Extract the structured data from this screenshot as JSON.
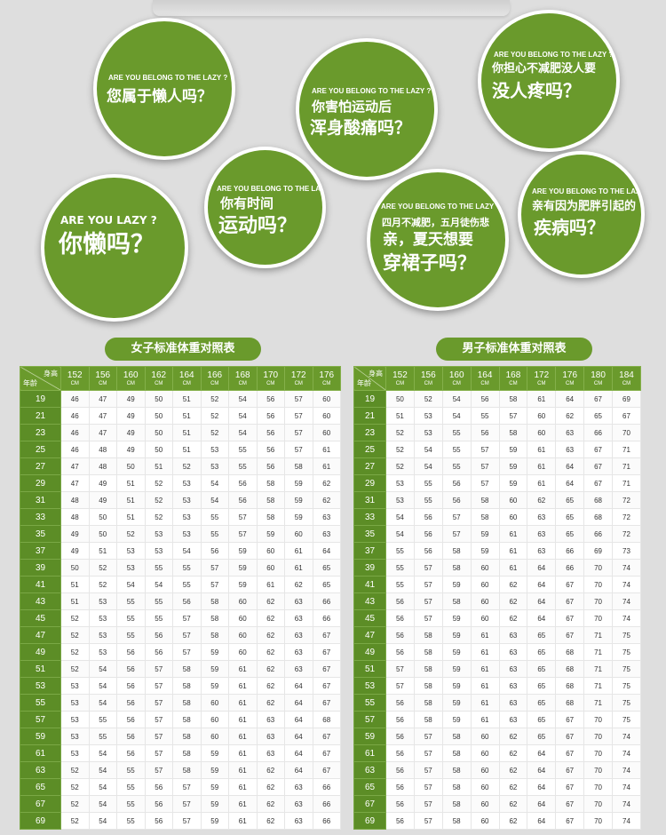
{
  "bubbles": [
    {
      "caption": "ARE YOU BELONG TO THE LAZY ?",
      "lines": [
        "您属于懒人吗？"
      ]
    },
    {
      "caption": "ARE YOU BELONG TO THE LAZY ?",
      "lines": [
        "你害怕运动后",
        "浑身酸痛吗？"
      ]
    },
    {
      "caption": "ARE YOU BELONG TO THE LAZY ?",
      "lines": [
        "你担心不减肥没人要",
        "没人疼吗？"
      ]
    },
    {
      "caption": "ARE YOU  LAZY ?",
      "lines": [
        "你懒吗？"
      ]
    },
    {
      "caption": "ARE YOU BELONG TO THE LAZY ?",
      "lines": [
        "你有时间",
        "运动吗？"
      ]
    },
    {
      "caption": "ARE YOU BELONG TO THE LAZY ?",
      "lines": [
        "四月不减肥，五月徒伤悲",
        "亲，夏天想要",
        "穿裙子吗？"
      ]
    },
    {
      "caption": "ARE YOU BELONG TO THE LAZY ?",
      "lines": [
        "亲有因为肥胖引起的",
        "疾病吗？"
      ]
    }
  ],
  "female_table": {
    "title": "女子标准体重对照表",
    "corner_top": "身高",
    "corner_bottom": "年龄",
    "unit": "CM",
    "heights": [
      "152",
      "156",
      "160",
      "162",
      "164",
      "166",
      "168",
      "170",
      "172",
      "176"
    ],
    "rows": [
      {
        "age": "19",
        "values": [
          "46",
          "47",
          "49",
          "50",
          "51",
          "52",
          "54",
          "56",
          "57",
          "60"
        ]
      },
      {
        "age": "21",
        "values": [
          "46",
          "47",
          "49",
          "50",
          "51",
          "52",
          "54",
          "56",
          "57",
          "60"
        ]
      },
      {
        "age": "23",
        "values": [
          "46",
          "47",
          "49",
          "50",
          "51",
          "52",
          "54",
          "56",
          "57",
          "60"
        ]
      },
      {
        "age": "25",
        "values": [
          "46",
          "48",
          "49",
          "50",
          "51",
          "53",
          "55",
          "56",
          "57",
          "61"
        ]
      },
      {
        "age": "27",
        "values": [
          "47",
          "48",
          "50",
          "51",
          "52",
          "53",
          "55",
          "56",
          "58",
          "61"
        ]
      },
      {
        "age": "29",
        "values": [
          "47",
          "49",
          "51",
          "52",
          "53",
          "54",
          "56",
          "58",
          "59",
          "62"
        ]
      },
      {
        "age": "31",
        "values": [
          "48",
          "49",
          "51",
          "52",
          "53",
          "54",
          "56",
          "58",
          "59",
          "62"
        ]
      },
      {
        "age": "33",
        "values": [
          "48",
          "50",
          "51",
          "52",
          "53",
          "55",
          "57",
          "58",
          "59",
          "63"
        ]
      },
      {
        "age": "35",
        "values": [
          "49",
          "50",
          "52",
          "53",
          "53",
          "55",
          "57",
          "59",
          "60",
          "63"
        ]
      },
      {
        "age": "37",
        "values": [
          "49",
          "51",
          "53",
          "53",
          "54",
          "56",
          "59",
          "60",
          "61",
          "64"
        ]
      },
      {
        "age": "39",
        "values": [
          "50",
          "52",
          "53",
          "55",
          "55",
          "57",
          "59",
          "60",
          "61",
          "65"
        ]
      },
      {
        "age": "41",
        "values": [
          "51",
          "52",
          "54",
          "54",
          "55",
          "57",
          "59",
          "61",
          "62",
          "65"
        ]
      },
      {
        "age": "43",
        "values": [
          "51",
          "53",
          "55",
          "55",
          "56",
          "58",
          "60",
          "62",
          "63",
          "66"
        ]
      },
      {
        "age": "45",
        "values": [
          "52",
          "53",
          "55",
          "55",
          "57",
          "58",
          "60",
          "62",
          "63",
          "66"
        ]
      },
      {
        "age": "47",
        "values": [
          "52",
          "53",
          "55",
          "56",
          "57",
          "58",
          "60",
          "62",
          "63",
          "67"
        ]
      },
      {
        "age": "49",
        "values": [
          "52",
          "53",
          "56",
          "56",
          "57",
          "59",
          "60",
          "62",
          "63",
          "67"
        ]
      },
      {
        "age": "51",
        "values": [
          "52",
          "54",
          "56",
          "57",
          "58",
          "59",
          "61",
          "62",
          "63",
          "67"
        ]
      },
      {
        "age": "53",
        "values": [
          "53",
          "54",
          "56",
          "57",
          "58",
          "59",
          "61",
          "62",
          "64",
          "67"
        ]
      },
      {
        "age": "55",
        "values": [
          "53",
          "54",
          "56",
          "57",
          "58",
          "60",
          "61",
          "62",
          "64",
          "67"
        ]
      },
      {
        "age": "57",
        "values": [
          "53",
          "55",
          "56",
          "57",
          "58",
          "60",
          "61",
          "63",
          "64",
          "68"
        ]
      },
      {
        "age": "59",
        "values": [
          "53",
          "55",
          "56",
          "57",
          "58",
          "60",
          "61",
          "63",
          "64",
          "67"
        ]
      },
      {
        "age": "61",
        "values": [
          "53",
          "54",
          "56",
          "57",
          "58",
          "59",
          "61",
          "63",
          "64",
          "67"
        ]
      },
      {
        "age": "63",
        "values": [
          "52",
          "54",
          "55",
          "57",
          "58",
          "59",
          "61",
          "62",
          "64",
          "67"
        ]
      },
      {
        "age": "65",
        "values": [
          "52",
          "54",
          "55",
          "56",
          "57",
          "59",
          "61",
          "62",
          "63",
          "66"
        ]
      },
      {
        "age": "67",
        "values": [
          "52",
          "54",
          "55",
          "56",
          "57",
          "59",
          "61",
          "62",
          "63",
          "66"
        ]
      },
      {
        "age": "69",
        "values": [
          "52",
          "54",
          "55",
          "56",
          "57",
          "59",
          "61",
          "62",
          "63",
          "66"
        ]
      }
    ]
  },
  "male_table": {
    "title": "男子标准体重对照表",
    "corner_top": "身高",
    "corner_bottom": "年龄",
    "unit": "CM",
    "heights": [
      "152",
      "156",
      "160",
      "164",
      "168",
      "172",
      "176",
      "180",
      "184"
    ],
    "rows": [
      {
        "age": "19",
        "values": [
          "50",
          "52",
          "54",
          "56",
          "58",
          "61",
          "64",
          "67",
          "69"
        ]
      },
      {
        "age": "21",
        "values": [
          "51",
          "53",
          "54",
          "55",
          "57",
          "60",
          "62",
          "65",
          "67"
        ]
      },
      {
        "age": "23",
        "values": [
          "52",
          "53",
          "55",
          "56",
          "58",
          "60",
          "63",
          "66",
          "70"
        ]
      },
      {
        "age": "25",
        "values": [
          "52",
          "54",
          "55",
          "57",
          "59",
          "61",
          "63",
          "67",
          "71"
        ]
      },
      {
        "age": "27",
        "values": [
          "52",
          "54",
          "55",
          "57",
          "59",
          "61",
          "64",
          "67",
          "71"
        ]
      },
      {
        "age": "29",
        "values": [
          "53",
          "55",
          "56",
          "57",
          "59",
          "61",
          "64",
          "67",
          "71"
        ]
      },
      {
        "age": "31",
        "values": [
          "53",
          "55",
          "56",
          "58",
          "60",
          "62",
          "65",
          "68",
          "72"
        ]
      },
      {
        "age": "33",
        "values": [
          "54",
          "56",
          "57",
          "58",
          "60",
          "63",
          "65",
          "68",
          "72"
        ]
      },
      {
        "age": "35",
        "values": [
          "54",
          "56",
          "57",
          "59",
          "61",
          "63",
          "65",
          "66",
          "72"
        ]
      },
      {
        "age": "37",
        "values": [
          "55",
          "56",
          "58",
          "59",
          "61",
          "63",
          "66",
          "69",
          "73"
        ]
      },
      {
        "age": "39",
        "values": [
          "55",
          "57",
          "58",
          "60",
          "61",
          "64",
          "66",
          "70",
          "74"
        ]
      },
      {
        "age": "41",
        "values": [
          "55",
          "57",
          "59",
          "60",
          "62",
          "64",
          "67",
          "70",
          "74"
        ]
      },
      {
        "age": "43",
        "values": [
          "56",
          "57",
          "58",
          "60",
          "62",
          "64",
          "67",
          "70",
          "74"
        ]
      },
      {
        "age": "45",
        "values": [
          "56",
          "57",
          "59",
          "60",
          "62",
          "64",
          "67",
          "70",
          "74"
        ]
      },
      {
        "age": "47",
        "values": [
          "56",
          "58",
          "59",
          "61",
          "63",
          "65",
          "67",
          "71",
          "75"
        ]
      },
      {
        "age": "49",
        "values": [
          "56",
          "58",
          "59",
          "61",
          "63",
          "65",
          "68",
          "71",
          "75"
        ]
      },
      {
        "age": "51",
        "values": [
          "57",
          "58",
          "59",
          "61",
          "63",
          "65",
          "68",
          "71",
          "75"
        ]
      },
      {
        "age": "53",
        "values": [
          "57",
          "58",
          "59",
          "61",
          "63",
          "65",
          "68",
          "71",
          "75"
        ]
      },
      {
        "age": "55",
        "values": [
          "56",
          "58",
          "59",
          "61",
          "63",
          "65",
          "68",
          "71",
          "75"
        ]
      },
      {
        "age": "57",
        "values": [
          "56",
          "58",
          "59",
          "61",
          "63",
          "65",
          "67",
          "70",
          "75"
        ]
      },
      {
        "age": "59",
        "values": [
          "56",
          "57",
          "58",
          "60",
          "62",
          "65",
          "67",
          "70",
          "74"
        ]
      },
      {
        "age": "61",
        "values": [
          "56",
          "57",
          "58",
          "60",
          "62",
          "64",
          "67",
          "70",
          "74"
        ]
      },
      {
        "age": "63",
        "values": [
          "56",
          "57",
          "58",
          "60",
          "62",
          "64",
          "67",
          "70",
          "74"
        ]
      },
      {
        "age": "65",
        "values": [
          "56",
          "57",
          "58",
          "60",
          "62",
          "64",
          "67",
          "70",
          "74"
        ]
      },
      {
        "age": "67",
        "values": [
          "56",
          "57",
          "58",
          "60",
          "62",
          "64",
          "67",
          "70",
          "74"
        ]
      },
      {
        "age": "69",
        "values": [
          "56",
          "57",
          "58",
          "60",
          "62",
          "64",
          "67",
          "70",
          "74"
        ]
      }
    ]
  }
}
